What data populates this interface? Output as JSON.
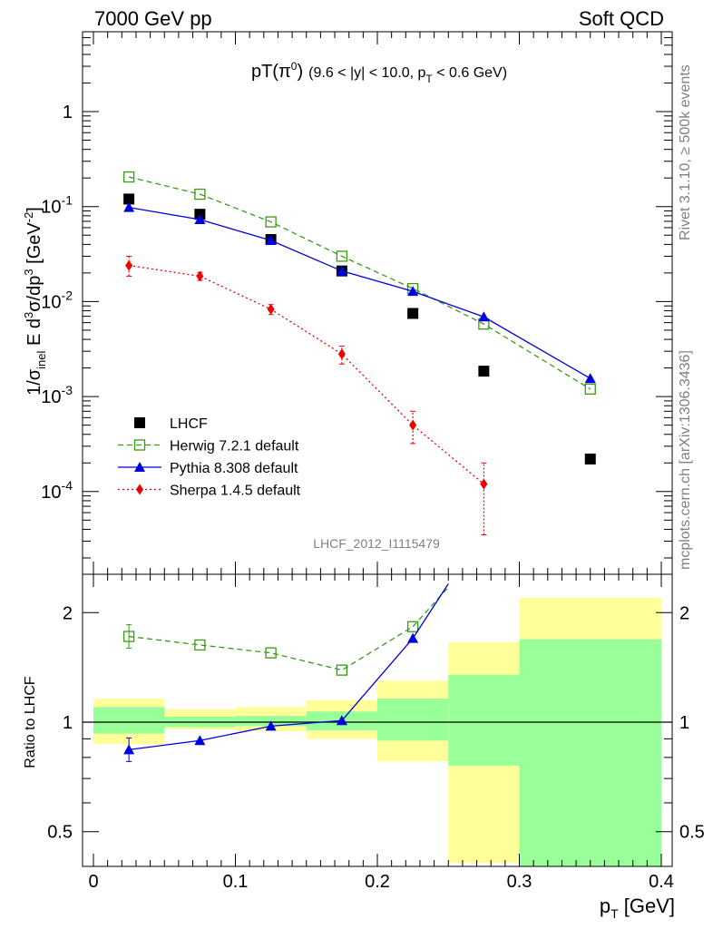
{
  "header": {
    "left": "7000 GeV pp",
    "right": "Soft QCD"
  },
  "side_text": {
    "rivet": "Rivet 3.1.10, ≥ 500k events",
    "source": "mcplots.cern.ch [arXiv:1306.3436]"
  },
  "analysis_id": "LHCF_2012_I1115479",
  "chart_data": [
    {
      "type": "scatter",
      "title": "pT(π⁰) (9.6 < |y| < 10.0, pT < 0.6 GeV)",
      "ylabel": "1/σinel E d³σ/dp³ [GeV⁻²]",
      "xlabel": "",
      "xlim": [
        0,
        0.4
      ],
      "ylim": [
        1e-05,
        6
      ],
      "log_y": true,
      "legend_position": "bottom-left",
      "y_tick_labels": [
        "10⁻⁴",
        "10⁻³",
        "10⁻²",
        "10⁻¹",
        "1"
      ],
      "series": [
        {
          "name": "LHCF",
          "style": "data",
          "color": "#000000",
          "marker": "filled-square",
          "x": [
            0.025,
            0.075,
            0.125,
            0.175,
            0.225,
            0.275,
            0.35
          ],
          "y": [
            0.12,
            0.083,
            0.045,
            0.021,
            0.0075,
            0.00185,
            0.00022
          ]
        },
        {
          "name": "Herwig 7.2.1 default",
          "style": "dashed",
          "color": "#3a9a16",
          "marker": "open-square",
          "x": [
            0.025,
            0.075,
            0.125,
            0.175,
            0.225,
            0.275,
            0.35
          ],
          "y": [
            0.205,
            0.135,
            0.069,
            0.03,
            0.0137,
            0.0058,
            0.0012
          ]
        },
        {
          "name": "Pythia 8.308 default",
          "style": "solid",
          "color": "#0000dd",
          "marker": "filled-triangle",
          "x": [
            0.025,
            0.075,
            0.125,
            0.175,
            0.225,
            0.275,
            0.35
          ],
          "y": [
            0.098,
            0.073,
            0.044,
            0.021,
            0.0128,
            0.0069,
            0.00155
          ]
        },
        {
          "name": "Sherpa 1.4.5 default",
          "style": "dotted",
          "color": "#ee0000",
          "marker": "filled-diamond",
          "x": [
            0.025,
            0.075,
            0.125,
            0.175,
            0.225,
            0.275
          ],
          "y": [
            0.024,
            0.0185,
            0.0083,
            0.0028,
            0.0005,
            0.00012
          ],
          "y_err_low": [
            0.0055,
            0.0018,
            0.001,
            0.0006,
            0.00018,
            8.5e-05
          ],
          "y_err_high": [
            0.006,
            0.0018,
            0.001,
            0.0006,
            0.0002,
            8e-05
          ]
        }
      ]
    },
    {
      "type": "line",
      "xlabel": "pT [GeV]",
      "ylabel": "Ratio to LHCF",
      "xlim": [
        0,
        0.4
      ],
      "ylim": [
        0.38,
        2.4
      ],
      "log_y": true,
      "x_tick_labels": [
        "0",
        "0.1",
        "0.2",
        "0.3",
        "0.4"
      ],
      "y_tick_labels": [
        "0.5",
        "1",
        "2"
      ],
      "uncertainty_bands": [
        {
          "x0": 0.0,
          "x1": 0.05,
          "inner": [
            0.93,
            1.1
          ],
          "outer": [
            0.87,
            1.16
          ]
        },
        {
          "x0": 0.05,
          "x1": 0.1,
          "inner": [
            0.97,
            1.035
          ],
          "outer": [
            0.955,
            1.085
          ]
        },
        {
          "x0": 0.1,
          "x1": 0.15,
          "inner": [
            0.975,
            1.04
          ],
          "outer": [
            0.945,
            1.1
          ]
        },
        {
          "x0": 0.15,
          "x1": 0.2,
          "inner": [
            0.95,
            1.07
          ],
          "outer": [
            0.9,
            1.15
          ]
        },
        {
          "x0": 0.2,
          "x1": 0.25,
          "inner": [
            0.89,
            1.16
          ],
          "outer": [
            0.78,
            1.3
          ]
        },
        {
          "x0": 0.25,
          "x1": 0.3,
          "inner": [
            0.76,
            1.35
          ],
          "outer": [
            0.41,
            1.66
          ]
        },
        {
          "x0": 0.3,
          "x1": 0.4,
          "inner": [
            0.35,
            1.69
          ],
          "outer": [
            0.35,
            2.2
          ]
        }
      ],
      "band_colors": {
        "inner": "#99ff99",
        "outer": "#ffff99"
      },
      "series": [
        {
          "name": "Herwig 7.2.1 default",
          "color": "#3a9a16",
          "marker": "open-square",
          "x": [
            0.025,
            0.075,
            0.125,
            0.175,
            0.225,
            0.25
          ],
          "y": [
            1.72,
            1.63,
            1.55,
            1.39,
            1.83,
            2.35
          ]
        },
        {
          "name": "Pythia 8.308 default",
          "color": "#0000dd",
          "marker": "filled-triangle",
          "x": [
            0.025,
            0.075,
            0.125,
            0.175,
            0.225,
            0.25
          ],
          "y": [
            0.84,
            0.89,
            0.975,
            1.01,
            1.7,
            2.4
          ]
        }
      ]
    }
  ]
}
